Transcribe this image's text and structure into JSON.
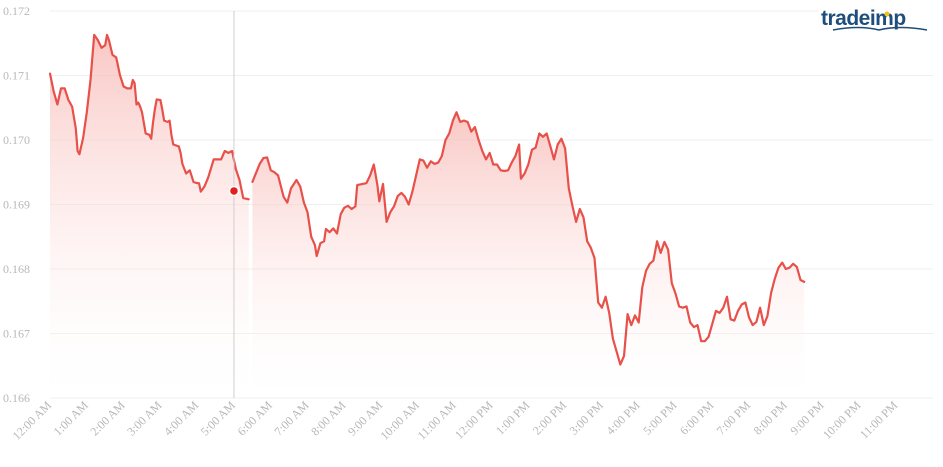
{
  "brand": {
    "logo_text": "tradeimp",
    "colors": {
      "primary": "#1f4e7d",
      "accent": "#f0c020"
    }
  },
  "colors": {
    "line": "#e8504a",
    "area_top": "#f7b5b0",
    "area_bottom": "#ffffff",
    "grid": "#efefef",
    "marker": "#e02020",
    "cursor": "#cfcfcf",
    "tick_text": "#b8b8b8"
  },
  "chart_data": {
    "type": "area",
    "title": "",
    "xlabel": "",
    "ylabel": "",
    "grid": true,
    "legend": "none",
    "ylim": [
      0.166,
      0.172
    ],
    "y_ticks": [
      "0.166",
      "0.167",
      "0.168",
      "0.169",
      "0.170",
      "0.171",
      "0.172"
    ],
    "x_ticks": [
      "12:00 AM",
      "1:00 AM",
      "2:00 AM",
      "3:00 AM",
      "4:00 AM",
      "5:00 AM",
      "6:00 AM",
      "7:00 AM",
      "8:00 AM",
      "9:00 AM",
      "10:00 AM",
      "11:00 AM",
      "12:00 PM",
      "1:00 PM",
      "2:00 PM",
      "3:00 PM",
      "4:00 PM",
      "5:00 PM",
      "6:00 PM",
      "7:00 PM",
      "8:00 PM",
      "9:00 PM",
      "10:00 PM",
      "11:00 PM"
    ],
    "xlim_hours": [
      0,
      24
    ],
    "cursor_hour": 5,
    "marker": {
      "hour": 5,
      "value": 0.16921
    },
    "series": [
      {
        "points": [
          [
            0.0,
            0.17103
          ],
          [
            0.1,
            0.17075
          ],
          [
            0.2,
            0.17055
          ],
          [
            0.3,
            0.1708
          ],
          [
            0.4,
            0.1708
          ],
          [
            0.5,
            0.17062
          ],
          [
            0.6,
            0.17052
          ],
          [
            0.7,
            0.17018
          ],
          [
            0.75,
            0.16983
          ],
          [
            0.8,
            0.16978
          ],
          [
            0.9,
            0.17003
          ],
          [
            1.0,
            0.17043
          ],
          [
            1.1,
            0.17093
          ],
          [
            1.2,
            0.17163
          ],
          [
            1.3,
            0.17155
          ],
          [
            1.4,
            0.17143
          ],
          [
            1.5,
            0.17147
          ],
          [
            1.55,
            0.17163
          ],
          [
            1.6,
            0.17155
          ],
          [
            1.7,
            0.17132
          ],
          [
            1.8,
            0.17128
          ],
          [
            1.9,
            0.17101
          ],
          [
            2.0,
            0.17083
          ],
          [
            2.1,
            0.1708
          ],
          [
            2.2,
            0.1708
          ],
          [
            2.25,
            0.17093
          ],
          [
            2.3,
            0.17088
          ],
          [
            2.35,
            0.17055
          ],
          [
            2.4,
            0.17058
          ],
          [
            2.45,
            0.17052
          ],
          [
            2.5,
            0.17043
          ],
          [
            2.6,
            0.1701
          ],
          [
            2.7,
            0.17008
          ],
          [
            2.75,
            0.17002
          ],
          [
            2.8,
            0.17027
          ],
          [
            2.85,
            0.17048
          ],
          [
            2.9,
            0.17063
          ],
          [
            3.0,
            0.17062
          ],
          [
            3.05,
            0.17048
          ],
          [
            3.1,
            0.1703
          ],
          [
            3.2,
            0.17028
          ],
          [
            3.25,
            0.1703
          ],
          [
            3.3,
            0.17008
          ],
          [
            3.35,
            0.16993
          ],
          [
            3.5,
            0.1699
          ],
          [
            3.55,
            0.1698
          ],
          [
            3.6,
            0.16963
          ],
          [
            3.7,
            0.16948
          ],
          [
            3.8,
            0.16953
          ],
          [
            3.9,
            0.16935
          ],
          [
            4.0,
            0.16933
          ],
          [
            4.05,
            0.16933
          ],
          [
            4.1,
            0.1692
          ],
          [
            4.2,
            0.16928
          ],
          [
            4.3,
            0.16942
          ],
          [
            4.45,
            0.1697
          ],
          [
            4.65,
            0.1697
          ],
          [
            4.75,
            0.16983
          ],
          [
            4.85,
            0.1698
          ],
          [
            4.95,
            0.16983
          ],
          [
            5.05,
            0.16955
          ],
          [
            5.15,
            0.16938
          ],
          [
            5.25,
            0.1691
          ],
          [
            5.4,
            0.16908
          ]
        ]
      },
      {
        "points": [
          [
            5.5,
            0.16935
          ],
          [
            5.7,
            0.16963
          ],
          [
            5.8,
            0.16972
          ],
          [
            5.9,
            0.16973
          ],
          [
            6.0,
            0.16953
          ],
          [
            6.1,
            0.1695
          ],
          [
            6.2,
            0.16945
          ],
          [
            6.35,
            0.16912
          ],
          [
            6.45,
            0.16903
          ],
          [
            6.55,
            0.16925
          ],
          [
            6.7,
            0.16938
          ],
          [
            6.8,
            0.16928
          ],
          [
            6.9,
            0.16903
          ],
          [
            7.0,
            0.16888
          ],
          [
            7.1,
            0.1685
          ],
          [
            7.2,
            0.16837
          ],
          [
            7.25,
            0.1682
          ],
          [
            7.35,
            0.1684
          ],
          [
            7.45,
            0.16843
          ],
          [
            7.5,
            0.16862
          ],
          [
            7.6,
            0.16857
          ],
          [
            7.7,
            0.16863
          ],
          [
            7.8,
            0.16855
          ],
          [
            7.9,
            0.16885
          ],
          [
            8.0,
            0.16895
          ],
          [
            8.1,
            0.16898
          ],
          [
            8.2,
            0.16893
          ],
          [
            8.3,
            0.16897
          ],
          [
            8.35,
            0.1693
          ],
          [
            8.5,
            0.16932
          ],
          [
            8.6,
            0.16933
          ],
          [
            8.7,
            0.16945
          ],
          [
            8.8,
            0.16962
          ],
          [
            8.9,
            0.1693
          ],
          [
            8.95,
            0.16905
          ],
          [
            9.05,
            0.16932
          ],
          [
            9.15,
            0.16873
          ],
          [
            9.25,
            0.16888
          ],
          [
            9.35,
            0.16897
          ],
          [
            9.45,
            0.16913
          ],
          [
            9.55,
            0.16918
          ],
          [
            9.65,
            0.16912
          ],
          [
            9.75,
            0.169
          ],
          [
            9.85,
            0.1692
          ],
          [
            9.95,
            0.16945
          ],
          [
            10.05,
            0.1697
          ],
          [
            10.15,
            0.16968
          ],
          [
            10.25,
            0.16957
          ],
          [
            10.35,
            0.16967
          ],
          [
            10.45,
            0.16963
          ],
          [
            10.55,
            0.16965
          ],
          [
            10.65,
            0.16975
          ],
          [
            10.75,
            0.17
          ],
          [
            10.85,
            0.1701
          ],
          [
            10.95,
            0.1703
          ],
          [
            11.05,
            0.17043
          ],
          [
            11.15,
            0.17028
          ],
          [
            11.25,
            0.1703
          ],
          [
            11.35,
            0.17028
          ],
          [
            11.45,
            0.17013
          ],
          [
            11.55,
            0.1702
          ],
          [
            11.65,
            0.17
          ],
          [
            11.75,
            0.16983
          ],
          [
            11.85,
            0.1697
          ],
          [
            11.95,
            0.1698
          ],
          [
            12.05,
            0.16962
          ],
          [
            12.15,
            0.16962
          ],
          [
            12.25,
            0.16953
          ],
          [
            12.35,
            0.16952
          ],
          [
            12.45,
            0.16953
          ],
          [
            12.55,
            0.16965
          ],
          [
            12.65,
            0.16975
          ],
          [
            12.75,
            0.16993
          ],
          [
            12.8,
            0.1694
          ],
          [
            12.9,
            0.16948
          ],
          [
            13.0,
            0.16962
          ],
          [
            13.1,
            0.16985
          ],
          [
            13.2,
            0.16988
          ],
          [
            13.3,
            0.1701
          ],
          [
            13.4,
            0.17005
          ],
          [
            13.5,
            0.1701
          ],
          [
            13.6,
            0.1699
          ],
          [
            13.7,
            0.1697
          ],
          [
            13.8,
            0.16993
          ],
          [
            13.9,
            0.17002
          ],
          [
            14.0,
            0.16987
          ],
          [
            14.1,
            0.16925
          ],
          [
            14.2,
            0.16898
          ],
          [
            14.3,
            0.16873
          ],
          [
            14.4,
            0.16893
          ],
          [
            14.5,
            0.1688
          ],
          [
            14.6,
            0.16843
          ],
          [
            14.7,
            0.16833
          ],
          [
            14.8,
            0.16817
          ],
          [
            14.9,
            0.16748
          ],
          [
            15.0,
            0.1674
          ],
          [
            15.1,
            0.16757
          ],
          [
            15.2,
            0.16732
          ],
          [
            15.3,
            0.16692
          ],
          [
            15.4,
            0.16672
          ],
          [
            15.5,
            0.16652
          ],
          [
            15.6,
            0.16665
          ],
          [
            15.7,
            0.1673
          ],
          [
            15.8,
            0.16713
          ],
          [
            15.9,
            0.16728
          ],
          [
            16.0,
            0.16717
          ],
          [
            16.1,
            0.16772
          ],
          [
            16.2,
            0.16797
          ],
          [
            16.3,
            0.16808
          ],
          [
            16.4,
            0.16813
          ],
          [
            16.5,
            0.16843
          ],
          [
            16.6,
            0.16825
          ],
          [
            16.7,
            0.16842
          ],
          [
            16.8,
            0.1683
          ],
          [
            16.9,
            0.16778
          ],
          [
            17.0,
            0.16762
          ],
          [
            17.1,
            0.16742
          ],
          [
            17.2,
            0.1674
          ],
          [
            17.3,
            0.16742
          ],
          [
            17.4,
            0.16717
          ],
          [
            17.5,
            0.1671
          ],
          [
            17.6,
            0.16713
          ],
          [
            17.7,
            0.16688
          ],
          [
            17.8,
            0.16688
          ],
          [
            17.9,
            0.16695
          ],
          [
            18.0,
            0.16715
          ],
          [
            18.1,
            0.16735
          ],
          [
            18.2,
            0.16732
          ],
          [
            18.3,
            0.1674
          ],
          [
            18.4,
            0.16757
          ],
          [
            18.5,
            0.16722
          ],
          [
            18.6,
            0.1672
          ],
          [
            18.7,
            0.16735
          ],
          [
            18.8,
            0.16745
          ],
          [
            18.9,
            0.16748
          ],
          [
            19.0,
            0.16725
          ],
          [
            19.1,
            0.16713
          ],
          [
            19.2,
            0.16718
          ],
          [
            19.3,
            0.1674
          ],
          [
            19.4,
            0.16713
          ],
          [
            19.5,
            0.16727
          ],
          [
            19.6,
            0.16763
          ],
          [
            19.7,
            0.16785
          ],
          [
            19.8,
            0.16802
          ],
          [
            19.9,
            0.1681
          ],
          [
            20.0,
            0.168
          ],
          [
            20.1,
            0.16802
          ],
          [
            20.2,
            0.16808
          ],
          [
            20.3,
            0.16803
          ],
          [
            20.4,
            0.16783
          ],
          [
            20.5,
            0.1678
          ]
        ]
      }
    ]
  }
}
